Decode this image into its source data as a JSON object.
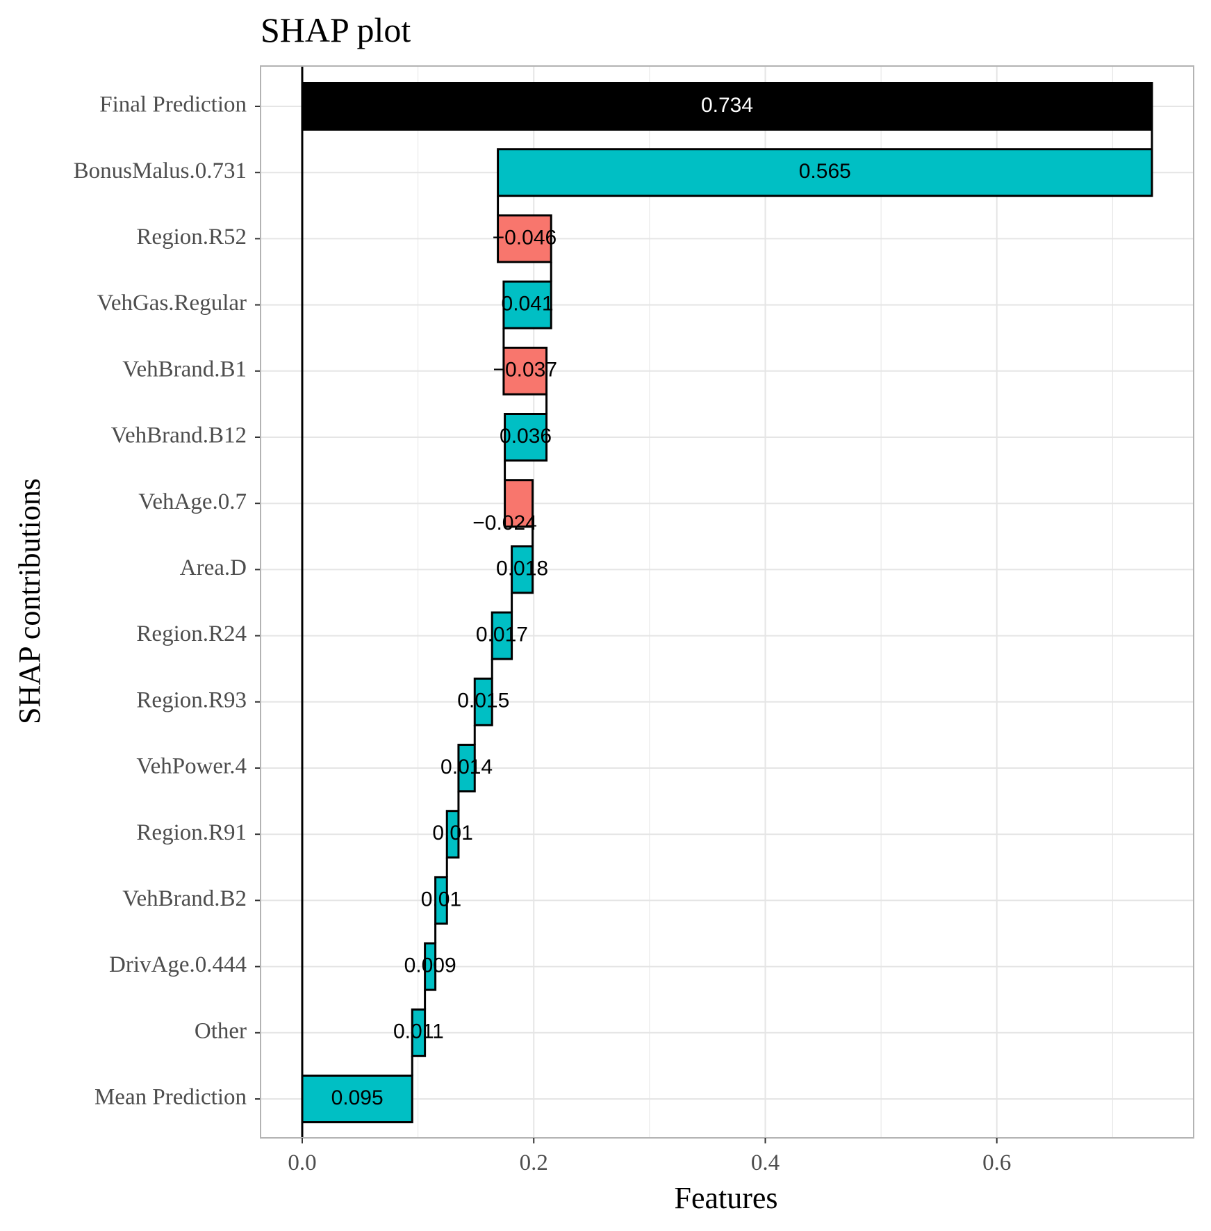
{
  "chart_data": {
    "type": "bar",
    "orientation": "horizontal-waterfall",
    "title": "SHAP plot",
    "xlabel": "Features",
    "ylabel": "SHAP contributions",
    "xlim": [
      -0.036,
      0.77
    ],
    "xticks": [
      0.0,
      0.2,
      0.4,
      0.6
    ],
    "xtick_labels": [
      "0.0",
      "0.2",
      "0.4",
      "0.6"
    ],
    "grid": true,
    "legend": "none",
    "colors": {
      "positive": "#00BFC4",
      "negative": "#F8766D",
      "final": "#000000",
      "panel_border": "#b3b3b3",
      "grid": "#e5e5e5"
    },
    "bars": [
      {
        "feature": "Final Prediction",
        "start": 0.0,
        "end": 0.734,
        "label": "0.734",
        "kind": "final"
      },
      {
        "feature": "BonusMalus.0.731",
        "start": 0.169,
        "end": 0.734,
        "label": "0.565",
        "kind": "positive"
      },
      {
        "feature": "Region.R52",
        "start": 0.215,
        "end": 0.169,
        "label": "−0.046",
        "kind": "negative"
      },
      {
        "feature": "VehGas.Regular",
        "start": 0.174,
        "end": 0.215,
        "label": "0.041",
        "kind": "positive"
      },
      {
        "feature": "VehBrand.B1",
        "start": 0.211,
        "end": 0.174,
        "label": "−0.037",
        "kind": "negative"
      },
      {
        "feature": "VehBrand.B12",
        "start": 0.175,
        "end": 0.211,
        "label": "0.036",
        "kind": "positive"
      },
      {
        "feature": "VehAge.0.7",
        "start": 0.199,
        "end": 0.175,
        "label": "−0.024",
        "kind": "negative"
      },
      {
        "feature": "Area.D",
        "start": 0.181,
        "end": 0.199,
        "label": "0.018",
        "kind": "positive"
      },
      {
        "feature": "Region.R24",
        "start": 0.164,
        "end": 0.181,
        "label": "0.017",
        "kind": "positive"
      },
      {
        "feature": "Region.R93",
        "start": 0.149,
        "end": 0.164,
        "label": "0.015",
        "kind": "positive"
      },
      {
        "feature": "VehPower.4",
        "start": 0.135,
        "end": 0.149,
        "label": "0.014",
        "kind": "positive"
      },
      {
        "feature": "Region.R91",
        "start": 0.125,
        "end": 0.135,
        "label": "0.01",
        "kind": "positive"
      },
      {
        "feature": "VehBrand.B2",
        "start": 0.115,
        "end": 0.125,
        "label": "0.01",
        "kind": "positive"
      },
      {
        "feature": "DrivAge.0.444",
        "start": 0.106,
        "end": 0.115,
        "label": "0.009",
        "kind": "positive"
      },
      {
        "feature": "Other",
        "start": 0.095,
        "end": 0.106,
        "label": "0.011",
        "kind": "positive"
      },
      {
        "feature": "Mean Prediction",
        "start": 0.0,
        "end": 0.095,
        "label": "0.095",
        "kind": "positive"
      }
    ]
  }
}
